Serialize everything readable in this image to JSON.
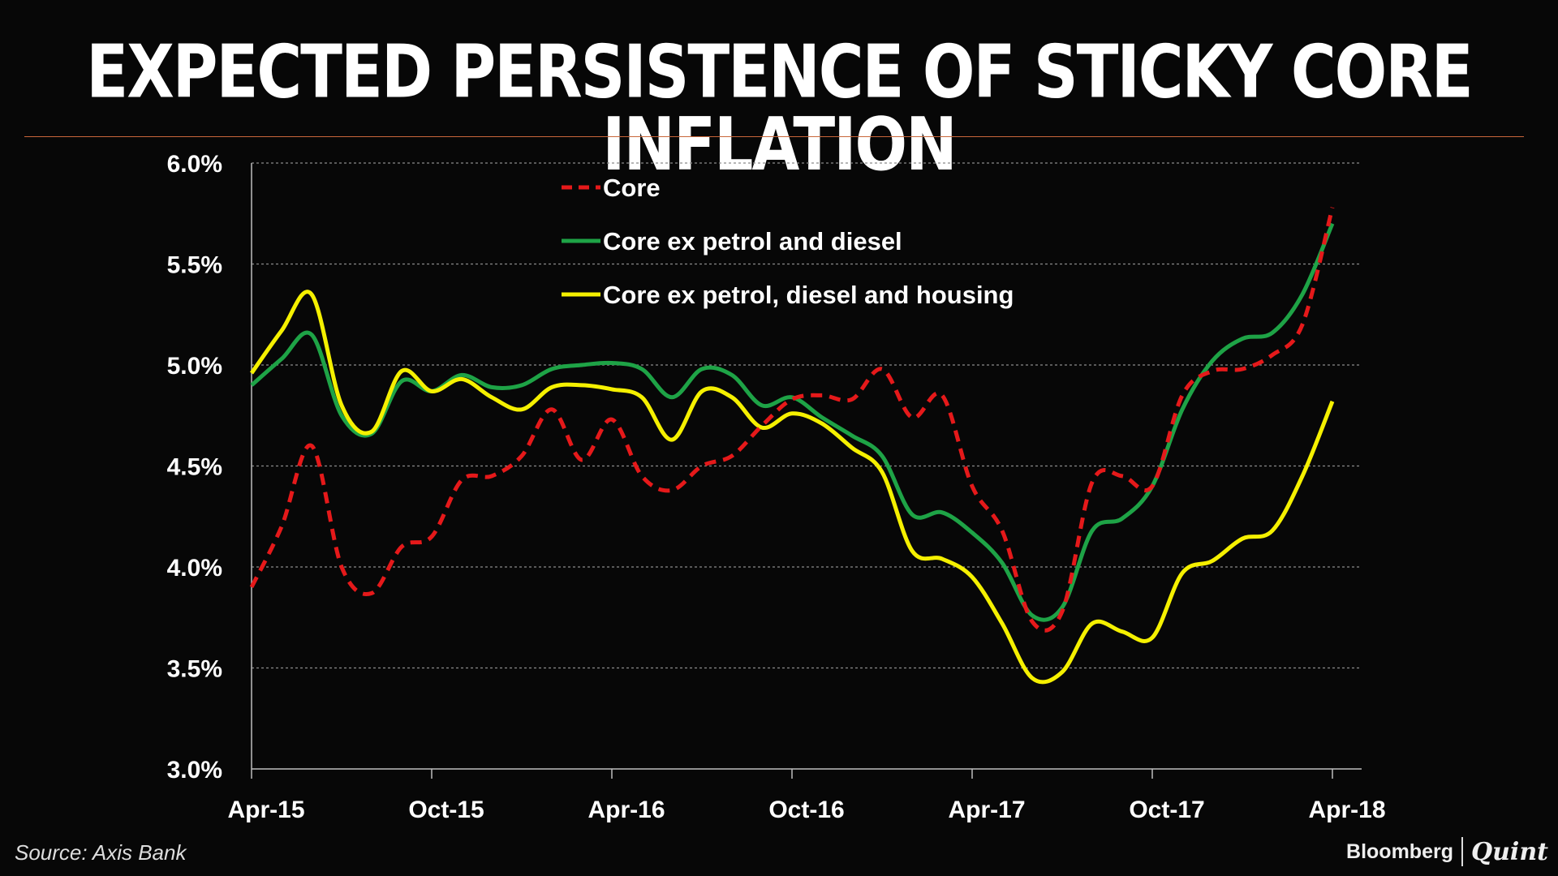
{
  "title": "EXPECTED PERSISTENCE OF STICKY CORE INFLATION",
  "source": "Source: Axis Bank",
  "logo": {
    "brand": "Bloomberg",
    "sub": "Quint"
  },
  "colors": {
    "core": "#e5191a",
    "green": "#1ea346",
    "yellow": "#f5f000",
    "grid": "#8a8a8a",
    "divider": "#c8663a"
  },
  "chart_data": {
    "type": "line",
    "title": "EXPECTED PERSISTENCE OF STICKY CORE INFLATION",
    "xlabel": "",
    "ylabel": "",
    "ylim": [
      3.0,
      6.0
    ],
    "yticks": [
      3.0,
      3.5,
      4.0,
      4.5,
      5.0,
      5.5,
      6.0
    ],
    "ytick_labels": [
      "3.0%",
      "3.5%",
      "4.0%",
      "4.5%",
      "5.0%",
      "5.5%",
      "6.0%"
    ],
    "x_months": [
      0,
      1,
      2,
      3,
      4,
      5,
      6,
      7,
      8,
      9,
      10,
      11,
      12,
      13,
      14,
      15,
      16,
      17,
      18,
      19,
      20,
      21,
      22,
      23,
      24,
      25,
      26,
      27,
      28,
      29,
      30,
      31,
      32,
      33,
      34,
      35,
      36
    ],
    "xticks": [
      0,
      6,
      12,
      18,
      24,
      30,
      36
    ],
    "xtick_labels": [
      "Apr-15",
      "Oct-15",
      "Apr-16",
      "Oct-16",
      "Apr-17",
      "Oct-17",
      "Apr-18"
    ],
    "legend_position": "top-center",
    "series": [
      {
        "name": "Core",
        "style": "dashed",
        "values": [
          3.9,
          4.2,
          4.6,
          4.0,
          3.87,
          4.1,
          4.15,
          4.43,
          4.45,
          4.55,
          4.78,
          4.53,
          4.73,
          4.45,
          4.38,
          4.5,
          4.55,
          4.7,
          4.83,
          4.85,
          4.83,
          4.98,
          4.74,
          4.85,
          4.4,
          4.18,
          3.73,
          3.78,
          4.42,
          4.45,
          4.4,
          4.85,
          4.97,
          4.98,
          5.05,
          5.2,
          5.78
        ]
      },
      {
        "name": "Core ex petrol  and diesel",
        "style": "solid",
        "values": [
          4.9,
          5.03,
          5.15,
          4.75,
          4.66,
          4.92,
          4.87,
          4.95,
          4.89,
          4.9,
          4.98,
          5.0,
          5.01,
          4.98,
          4.84,
          4.98,
          4.95,
          4.8,
          4.84,
          4.74,
          4.65,
          4.55,
          4.26,
          4.27,
          4.17,
          4.02,
          3.76,
          3.8,
          4.18,
          4.24,
          4.4,
          4.78,
          5.02,
          5.13,
          5.16,
          5.35,
          5.7
        ]
      },
      {
        "name": "Core ex petrol, diesel and housing",
        "style": "solid",
        "values": [
          4.96,
          5.17,
          5.35,
          4.8,
          4.67,
          4.97,
          4.87,
          4.93,
          4.84,
          4.78,
          4.89,
          4.9,
          4.88,
          4.84,
          4.63,
          4.87,
          4.84,
          4.69,
          4.76,
          4.71,
          4.59,
          4.47,
          4.08,
          4.04,
          3.95,
          3.72,
          3.45,
          3.48,
          3.72,
          3.68,
          3.65,
          3.97,
          4.03,
          4.14,
          4.18,
          4.45,
          4.82
        ]
      }
    ]
  }
}
